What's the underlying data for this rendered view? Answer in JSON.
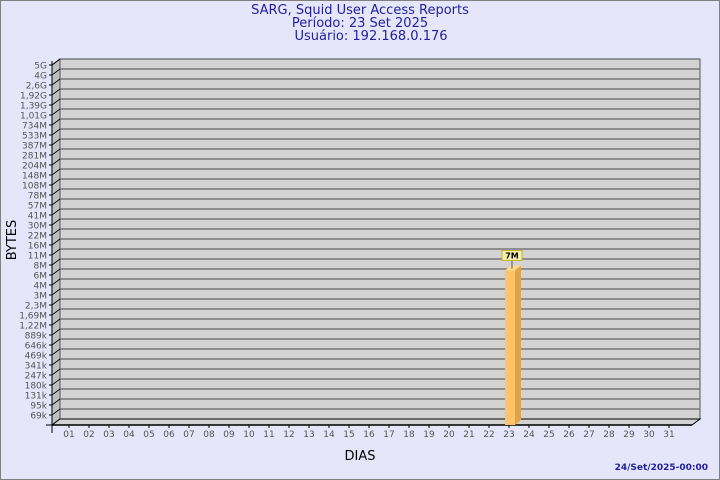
{
  "chart_data": {
    "type": "bar",
    "title": [
      "SARG, Squid User Access Reports",
      "Período: 23 Set 2025",
      "Usuário: 192.168.0.176"
    ],
    "xlabel": "DIAS",
    "ylabel": "BYTES",
    "y_scale": "log",
    "y_ticks": [
      "5G",
      "4G",
      "2,6G",
      "1,92G",
      "1,39G",
      "1,01G",
      "734M",
      "533M",
      "387M",
      "281M",
      "204M",
      "148M",
      "108M",
      "78M",
      "57M",
      "41M",
      "30M",
      "22M",
      "16M",
      "11M",
      "8M",
      "6M",
      "4M",
      "3M",
      "2,3M",
      "1,69M",
      "1,22M",
      "889k",
      "646k",
      "469k",
      "341k",
      "247k",
      "180k",
      "131k",
      "95k",
      "69k"
    ],
    "categories": [
      "01",
      "02",
      "03",
      "04",
      "05",
      "06",
      "07",
      "08",
      "09",
      "10",
      "11",
      "12",
      "13",
      "14",
      "15",
      "16",
      "17",
      "18",
      "19",
      "20",
      "21",
      "22",
      "23",
      "24",
      "25",
      "26",
      "27",
      "28",
      "29",
      "30",
      "31"
    ],
    "bars": [
      {
        "day": "23",
        "value_label": "7M",
        "tick_position": 20.5
      }
    ],
    "grid": true,
    "footer": "24/Set/2025-00:00",
    "colors": {
      "background": "#e6e6fa",
      "plot": "#d3d3d3",
      "bar": "#ffc469",
      "bar_side": "#dca54d",
      "text": "#1f1f9f",
      "label_box": "#f0f0a8"
    }
  }
}
